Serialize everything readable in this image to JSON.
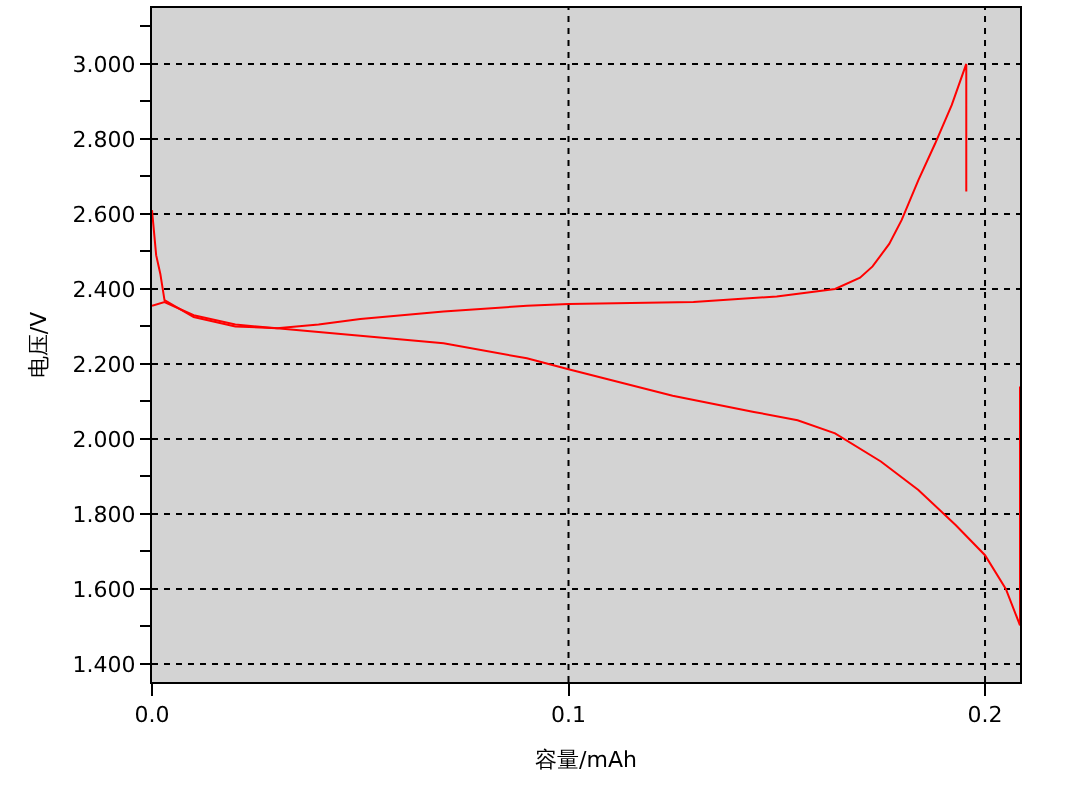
{
  "chart_data": {
    "type": "line",
    "xlabel": "容量/mAh",
    "ylabel": "电压/V",
    "xlim": [
      0,
      0.2084
    ],
    "ylim": [
      1.352,
      3.149
    ],
    "xticks": [
      {
        "value": 0,
        "label": "0.0"
      },
      {
        "value": 0.1,
        "label": "0.1"
      },
      {
        "value": 0.2,
        "label": "0.2"
      }
    ],
    "yticks": [
      {
        "value": 1.4,
        "label": "1.400"
      },
      {
        "value": 1.5,
        "label": null
      },
      {
        "value": 1.6,
        "label": "1.600"
      },
      {
        "value": 1.7,
        "label": null
      },
      {
        "value": 1.8,
        "label": "1.800"
      },
      {
        "value": 1.9,
        "label": null
      },
      {
        "value": 2.0,
        "label": "2.000"
      },
      {
        "value": 2.1,
        "label": null
      },
      {
        "value": 2.2,
        "label": "2.200"
      },
      {
        "value": 2.3,
        "label": null
      },
      {
        "value": 2.4,
        "label": "2.400"
      },
      {
        "value": 2.5,
        "label": null
      },
      {
        "value": 2.6,
        "label": "2.600"
      },
      {
        "value": 2.7,
        "label": null
      },
      {
        "value": 2.8,
        "label": "2.800"
      },
      {
        "value": 2.9,
        "label": null
      },
      {
        "value": 3.0,
        "label": "3.000"
      },
      {
        "value": 3.1,
        "label": null
      }
    ],
    "grid": true,
    "marker": "none",
    "line_style": "solid",
    "series": [
      {
        "color": "#ff0000",
        "x": [
          0,
          0.001,
          0.002,
          0.003,
          0.01,
          0.02,
          0.03,
          0.05,
          0.07,
          0.09,
          0.1,
          0.125,
          0.1445,
          0.155,
          0.164,
          0.175,
          0.184,
          0.193,
          0.2,
          0.205,
          0.2084,
          0.2084
        ],
        "values": [
          2.61,
          2.49,
          2.44,
          2.37,
          2.325,
          2.3,
          2.295,
          2.275,
          2.255,
          2.215,
          2.186,
          2.115,
          2.072,
          2.05,
          2.015,
          1.94,
          1.864,
          1.77,
          1.69,
          1.6,
          1.503,
          2.14
        ]
      },
      {
        "color": "#ff0000",
        "x": [
          0,
          0.003,
          0.01,
          0.02,
          0.03,
          0.04,
          0.05,
          0.07,
          0.09,
          0.1,
          0.13,
          0.15,
          0.164,
          0.17,
          0.173,
          0.177,
          0.18,
          0.184,
          0.188,
          0.192,
          0.1955,
          0.1955
        ],
        "values": [
          2.355,
          2.365,
          2.33,
          2.305,
          2.295,
          2.305,
          2.32,
          2.34,
          2.355,
          2.36,
          2.365,
          2.38,
          2.4,
          2.43,
          2.46,
          2.52,
          2.584,
          2.69,
          2.787,
          2.89,
          3.0,
          2.66
        ]
      }
    ]
  }
}
